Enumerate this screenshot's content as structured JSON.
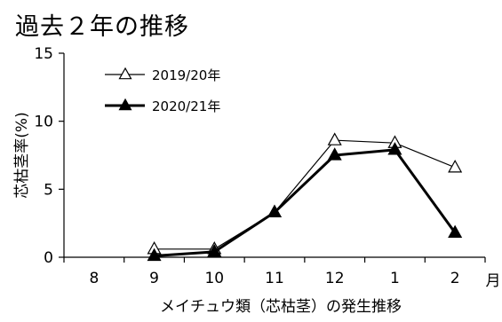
{
  "chart_data": {
    "type": "line",
    "title": "過去２年の推移",
    "xlabel": "メイチュウ類（芯枯茎）の発生推移",
    "ylabel": "芯枯茎率(%)",
    "x_unit": "月",
    "categories": [
      "8",
      "9",
      "10",
      "11",
      "12",
      "1",
      "2"
    ],
    "ylim": [
      0,
      15
    ],
    "yticks": [
      0,
      5,
      10,
      15
    ],
    "grid": false,
    "legend_position": "top-left",
    "series": [
      {
        "name": "2019/20年",
        "marker": "open-triangle",
        "line_weight": "thin",
        "values": [
          null,
          0.6,
          0.6,
          3.3,
          8.6,
          8.4,
          6.6
        ]
      },
      {
        "name": "2020/21年",
        "marker": "filled-triangle",
        "line_weight": "bold",
        "values": [
          null,
          0.1,
          0.4,
          3.3,
          7.5,
          7.9,
          1.8
        ]
      }
    ]
  }
}
